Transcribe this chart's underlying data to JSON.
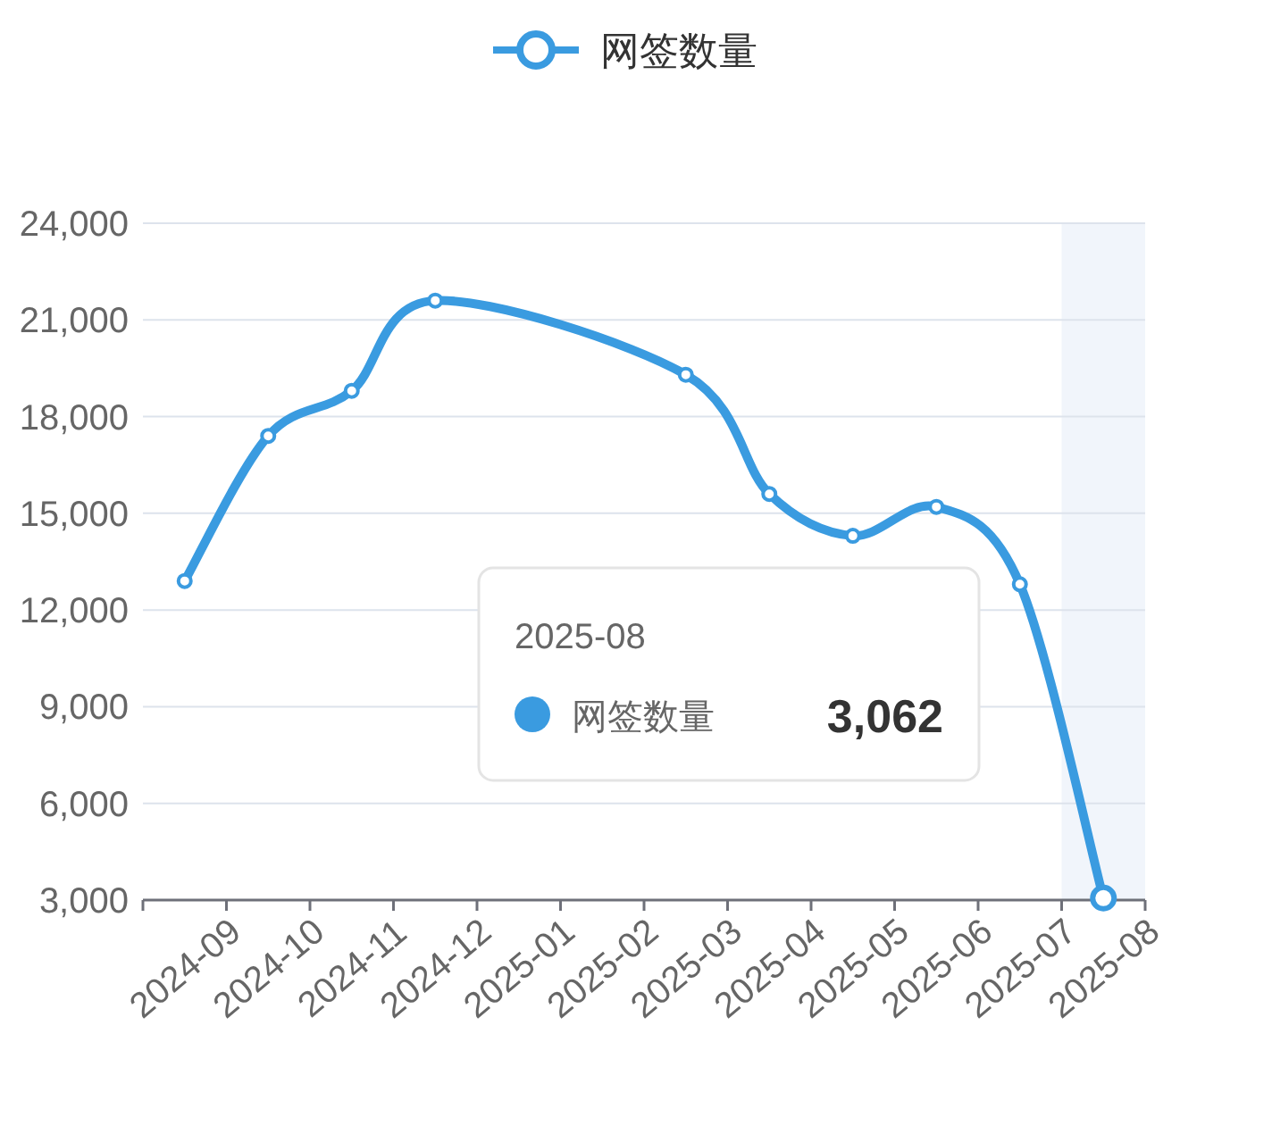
{
  "chart_data": {
    "type": "line",
    "categories": [
      "2024-09",
      "2024-10",
      "2024-11",
      "2024-12",
      "2025-01",
      "2025-02",
      "2025-03",
      "2025-04",
      "2025-05",
      "2025-06",
      "2025-07",
      "2025-08"
    ],
    "series": [
      {
        "name": "网签数量",
        "color": "#3a9be0",
        "values": [
          12900,
          17400,
          18800,
          21600,
          null,
          null,
          19300,
          15600,
          14300,
          15200,
          12800,
          3062
        ]
      }
    ],
    "annotations": [
      "2025-08",
      "网签数量",
      "3,062"
    ],
    "ylim": [
      3000,
      24000
    ],
    "yticks": [
      {
        "value": 3000,
        "label": "3,000"
      },
      {
        "value": 6000,
        "label": "6,000"
      },
      {
        "value": 9000,
        "label": "9,000"
      },
      {
        "value": 12000,
        "label": "12,000"
      },
      {
        "value": 15000,
        "label": "15,000"
      },
      {
        "value": 18000,
        "label": "18,000"
      },
      {
        "value": 21000,
        "label": "21,000"
      },
      {
        "value": 24000,
        "label": "24,000"
      }
    ],
    "bands": [
      {
        "axis": "x",
        "from": "2025-08",
        "to": "2025-08",
        "color": "#f1f5fb"
      }
    ],
    "grid": "y",
    "legend": "top",
    "marker": "circle",
    "line_style": "solid"
  }
}
